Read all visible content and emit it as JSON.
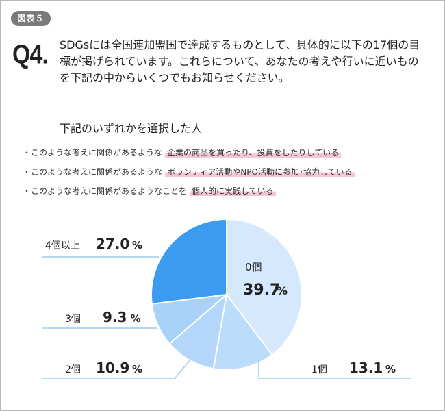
{
  "figure_tag": "図表５",
  "question": {
    "number": "Q4.",
    "text": "SDGsには全国連加盟国で達成するものとして、具体的に以下の17個の目標が掲げられています。これらについて、あなたの考えや行いに近いものを下記の中からいくつでもお知らせください。",
    "subtitle": "下記のいずれかを選択した人"
  },
  "criteria": [
    {
      "prefix": "・このような考えに関係があるような",
      "highlight": "企業の商品を買ったり、投資をしたりしている"
    },
    {
      "prefix": "・このような考えに関係があるような",
      "highlight": "ボランティア活動やNPO活動に参加･協力している"
    },
    {
      "prefix": "・このような考えに関係があるようなことを",
      "highlight": "個人的に実践している"
    }
  ],
  "chart_data": {
    "type": "pie",
    "title": "",
    "unit": "%",
    "start_angle_deg": 0,
    "direction": "clockwise",
    "slices": [
      {
        "label": "0個",
        "value": 39.7,
        "display": "39.7",
        "color": "#d6e8fb"
      },
      {
        "label": "1個",
        "value": 13.1,
        "display": "13.1",
        "color": "#bcdcfb"
      },
      {
        "label": "2個",
        "value": 10.9,
        "display": "10.9",
        "color": "#b3d6fa"
      },
      {
        "label": "3個",
        "value": 9.3,
        "display": "9.3",
        "color": "#a8d2f8"
      },
      {
        "label": "4個以上",
        "value": 27.0,
        "display": "27.0",
        "color": "#3a9bf0"
      }
    ],
    "leader_color": "#9ccbe9",
    "label_position": [
      "inside",
      "bottom-right",
      "bottom-left",
      "left",
      "left"
    ]
  }
}
